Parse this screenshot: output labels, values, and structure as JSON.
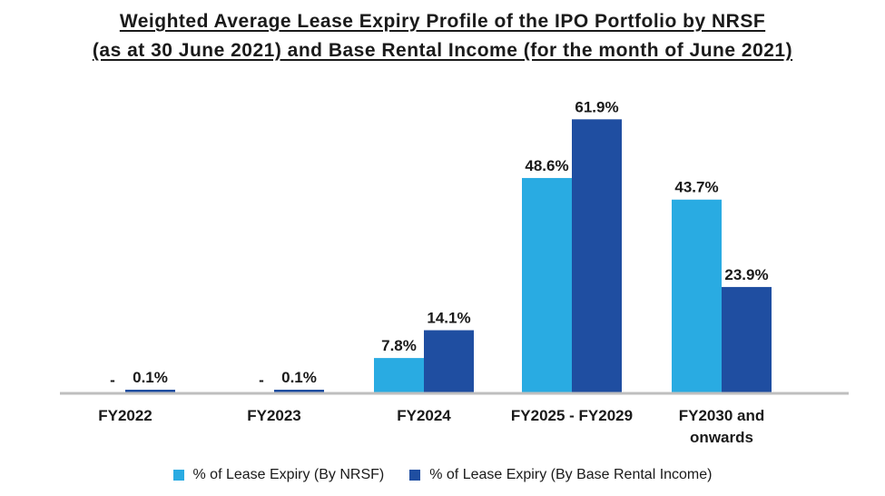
{
  "chart_data": {
    "type": "bar",
    "title_line1": "Weighted Average Lease Expiry Profile of the IPO Portfolio by NRSF",
    "title_line2": "(as at 30 June 2021) and Base Rental Income (for the month of June 2021)",
    "categories": [
      [
        "FY2022"
      ],
      [
        "FY2023"
      ],
      [
        "FY2024"
      ],
      [
        "FY2025 - FY2029"
      ],
      [
        "FY2030 and",
        "onwards"
      ]
    ],
    "series": [
      {
        "name": "% of Lease Expiry (By NRSF)",
        "color": "#29abe2",
        "values": [
          0,
          0,
          7.8,
          48.6,
          43.7
        ],
        "labels": [
          "-",
          "-",
          "7.8%",
          "48.6%",
          "43.7%"
        ]
      },
      {
        "name": "% of Lease Expiry (By Base Rental Income)",
        "color": "#1f4ea1",
        "values": [
          0.1,
          0.1,
          14.1,
          61.9,
          23.9
        ],
        "labels": [
          "0.1%",
          "0.1%",
          "14.1%",
          "61.9%",
          "23.9%"
        ]
      }
    ],
    "ylim": [
      0,
      70
    ],
    "grid": false,
    "legend_position": "bottom",
    "xlabel": "",
    "ylabel": ""
  }
}
